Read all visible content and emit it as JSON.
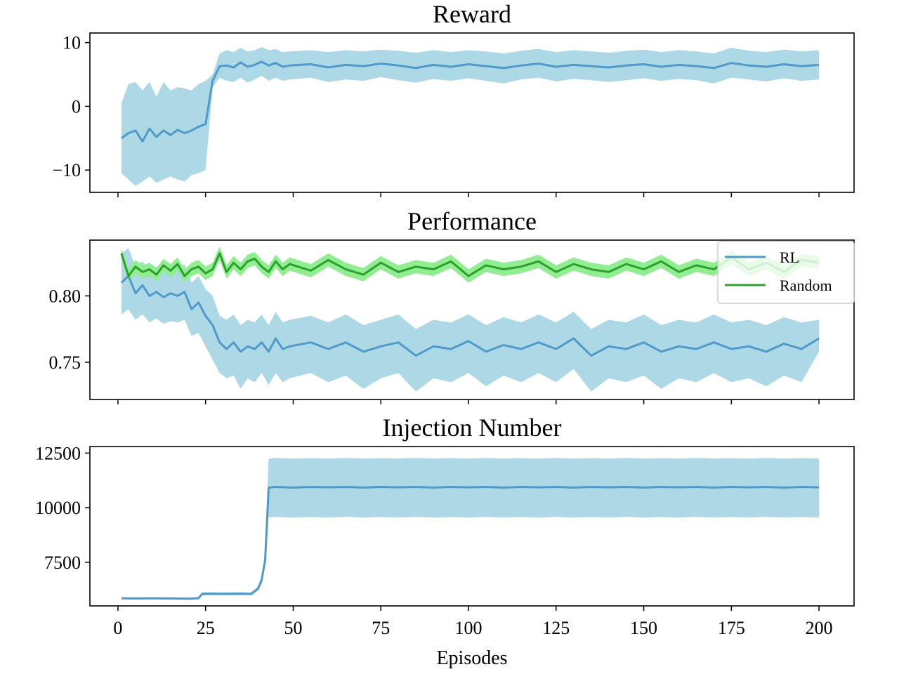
{
  "figure": {
    "xlabel": "Episodes",
    "colors": {
      "rl_line": "#4f9acb",
      "rl_band": "#add8e6",
      "random_line": "#2ca02c",
      "random_band": "#90ee90"
    }
  },
  "chart_data": [
    {
      "type": "line",
      "title": "Reward",
      "xlabel": "",
      "ylabel": "",
      "xlim": [
        -8,
        210
      ],
      "ylim": [
        -13.5,
        11.5
      ],
      "xticks": [
        0,
        25,
        50,
        75,
        100,
        125,
        150,
        175,
        200
      ],
      "yticks": [
        -10,
        0,
        10
      ],
      "ytick_labels": [
        "−10",
        "0",
        "10"
      ],
      "show_xtick_labels": false,
      "legend": null,
      "series": [
        {
          "label": "RL",
          "color": "#4f9acb",
          "band_color": "#add8e6",
          "x": [
            1,
            3,
            5,
            7,
            9,
            11,
            13,
            15,
            17,
            19,
            21,
            23,
            25,
            27,
            29,
            31,
            33,
            35,
            37,
            39,
            41,
            43,
            45,
            47,
            49,
            55,
            60,
            65,
            70,
            75,
            80,
            85,
            90,
            95,
            100,
            105,
            110,
            115,
            120,
            125,
            130,
            135,
            140,
            145,
            150,
            155,
            160,
            165,
            170,
            175,
            180,
            185,
            190,
            195,
            200
          ],
          "y": [
            -5,
            -4.2,
            -3.8,
            -5.5,
            -3.5,
            -4.8,
            -3.8,
            -4.5,
            -3.7,
            -4.2,
            -3.8,
            -3.2,
            -2.8,
            4,
            6.3,
            6.4,
            6.1,
            6.9,
            6.2,
            6.5,
            7,
            6.4,
            6.8,
            6.2,
            6.4,
            6.6,
            6.1,
            6.5,
            6.3,
            6.7,
            6.4,
            6,
            6.5,
            6.2,
            6.6,
            6.3,
            6,
            6.4,
            6.7,
            6.2,
            6.5,
            6.3,
            6.1,
            6.4,
            6.6,
            6.2,
            6.5,
            6.3,
            6,
            6.8,
            6.4,
            6.2,
            6.6,
            6.3,
            6.5
          ],
          "lower": [
            -10.5,
            -11.5,
            -12.5,
            -11.8,
            -11,
            -12,
            -11.5,
            -11,
            -11.5,
            -11.8,
            -10.8,
            -10.5,
            -10,
            3,
            4.5,
            4,
            3.8,
            4.5,
            3.7,
            4.2,
            4.8,
            4,
            4.5,
            4,
            4.2,
            4.5,
            3.8,
            4.2,
            4,
            4.6,
            4.1,
            3.7,
            4.3,
            4,
            4.4,
            4,
            3.6,
            4.2,
            4.5,
            3.9,
            4.3,
            4.1,
            3.8,
            4.1,
            4.4,
            4,
            4.3,
            4.1,
            3.6,
            4.5,
            4.2,
            3.9,
            4.4,
            4,
            4.2
          ],
          "upper": [
            0.5,
            3.5,
            3.8,
            2.5,
            3.8,
            1.5,
            3.8,
            2.5,
            3,
            2.8,
            2.5,
            3.5,
            4,
            5,
            8.3,
            8.8,
            8.5,
            9.2,
            8.6,
            8.8,
            9.3,
            8.8,
            9,
            8.5,
            8.6,
            8.8,
            8.5,
            8.8,
            8.6,
            8.9,
            8.7,
            8.4,
            8.8,
            8.5,
            8.8,
            8.6,
            8.3,
            8.7,
            9,
            8.5,
            8.8,
            8.6,
            8.4,
            8.7,
            8.9,
            8.5,
            8.8,
            8.6,
            8.3,
            9.2,
            8.7,
            8.5,
            8.9,
            8.6,
            8.8
          ]
        }
      ]
    },
    {
      "type": "line",
      "title": "Performance",
      "xlabel": "",
      "ylabel": "",
      "xlim": [
        -8,
        210
      ],
      "ylim": [
        0.722,
        0.842
      ],
      "xticks": [
        0,
        25,
        50,
        75,
        100,
        125,
        150,
        175,
        200
      ],
      "yticks": [
        0.75,
        0.8
      ],
      "ytick_labels": [
        "0.75",
        "0.80"
      ],
      "show_xtick_labels": false,
      "legend": "top-right",
      "series": [
        {
          "label": "RL",
          "color": "#4f9acb",
          "band_color": "#add8e6",
          "x": [
            1,
            3,
            5,
            7,
            9,
            11,
            13,
            15,
            17,
            19,
            21,
            23,
            25,
            27,
            29,
            31,
            33,
            35,
            37,
            39,
            41,
            43,
            45,
            47,
            49,
            55,
            60,
            65,
            70,
            75,
            80,
            85,
            90,
            95,
            100,
            105,
            110,
            115,
            120,
            125,
            130,
            135,
            140,
            145,
            150,
            155,
            160,
            165,
            170,
            175,
            180,
            185,
            190,
            195,
            200
          ],
          "y": [
            0.81,
            0.815,
            0.802,
            0.808,
            0.8,
            0.803,
            0.799,
            0.802,
            0.8,
            0.803,
            0.79,
            0.795,
            0.785,
            0.778,
            0.765,
            0.76,
            0.765,
            0.758,
            0.762,
            0.76,
            0.765,
            0.758,
            0.768,
            0.76,
            0.762,
            0.765,
            0.76,
            0.765,
            0.758,
            0.762,
            0.765,
            0.755,
            0.762,
            0.76,
            0.766,
            0.758,
            0.763,
            0.76,
            0.765,
            0.76,
            0.768,
            0.755,
            0.762,
            0.76,
            0.765,
            0.758,
            0.762,
            0.76,
            0.765,
            0.76,
            0.762,
            0.758,
            0.764,
            0.76,
            0.768
          ],
          "lower": [
            0.786,
            0.79,
            0.782,
            0.786,
            0.78,
            0.783,
            0.779,
            0.781,
            0.78,
            0.782,
            0.77,
            0.772,
            0.762,
            0.752,
            0.742,
            0.738,
            0.74,
            0.73,
            0.738,
            0.735,
            0.742,
            0.733,
            0.742,
            0.735,
            0.738,
            0.742,
            0.735,
            0.74,
            0.73,
            0.738,
            0.742,
            0.728,
            0.738,
            0.735,
            0.742,
            0.732,
            0.74,
            0.735,
            0.742,
            0.735,
            0.745,
            0.728,
            0.738,
            0.735,
            0.74,
            0.73,
            0.738,
            0.735,
            0.742,
            0.735,
            0.738,
            0.732,
            0.74,
            0.735,
            0.758
          ],
          "upper": [
            0.832,
            0.836,
            0.822,
            0.826,
            0.82,
            0.822,
            0.818,
            0.822,
            0.82,
            0.824,
            0.81,
            0.815,
            0.805,
            0.8,
            0.785,
            0.782,
            0.786,
            0.778,
            0.782,
            0.78,
            0.786,
            0.778,
            0.788,
            0.78,
            0.782,
            0.785,
            0.78,
            0.786,
            0.778,
            0.782,
            0.786,
            0.775,
            0.782,
            0.78,
            0.786,
            0.778,
            0.784,
            0.78,
            0.786,
            0.78,
            0.788,
            0.775,
            0.782,
            0.78,
            0.786,
            0.778,
            0.782,
            0.78,
            0.786,
            0.78,
            0.782,
            0.778,
            0.784,
            0.78,
            0.782
          ]
        },
        {
          "label": "Random",
          "color": "#2ca02c",
          "band_color": "#90ee90",
          "x": [
            1,
            3,
            5,
            7,
            9,
            11,
            13,
            15,
            17,
            19,
            21,
            23,
            25,
            27,
            29,
            31,
            33,
            35,
            37,
            39,
            41,
            43,
            45,
            47,
            49,
            55,
            60,
            65,
            70,
            75,
            80,
            85,
            90,
            95,
            100,
            105,
            110,
            115,
            120,
            125,
            130,
            135,
            140,
            145,
            150,
            155,
            160,
            165,
            170,
            175,
            180,
            185,
            190,
            195,
            200
          ],
          "y": [
            0.832,
            0.815,
            0.822,
            0.818,
            0.82,
            0.816,
            0.823,
            0.819,
            0.824,
            0.815,
            0.82,
            0.822,
            0.817,
            0.82,
            0.832,
            0.818,
            0.825,
            0.82,
            0.826,
            0.828,
            0.822,
            0.818,
            0.826,
            0.82,
            0.824,
            0.819,
            0.827,
            0.82,
            0.816,
            0.825,
            0.818,
            0.822,
            0.82,
            0.826,
            0.815,
            0.823,
            0.82,
            0.822,
            0.826,
            0.818,
            0.824,
            0.82,
            0.818,
            0.824,
            0.82,
            0.826,
            0.818,
            0.823,
            0.82,
            0.829,
            0.82,
            0.825,
            0.818,
            0.827,
            0.825
          ],
          "lower": [
            0.828,
            0.81,
            0.817,
            0.813,
            0.815,
            0.811,
            0.818,
            0.814,
            0.819,
            0.81,
            0.815,
            0.817,
            0.812,
            0.815,
            0.827,
            0.813,
            0.82,
            0.815,
            0.821,
            0.823,
            0.817,
            0.813,
            0.821,
            0.815,
            0.819,
            0.814,
            0.822,
            0.815,
            0.811,
            0.82,
            0.813,
            0.817,
            0.815,
            0.821,
            0.81,
            0.818,
            0.815,
            0.817,
            0.821,
            0.813,
            0.819,
            0.815,
            0.813,
            0.819,
            0.815,
            0.821,
            0.813,
            0.818,
            0.815,
            0.824,
            0.815,
            0.82,
            0.813,
            0.822,
            0.82
          ],
          "upper": [
            0.836,
            0.82,
            0.827,
            0.823,
            0.825,
            0.821,
            0.828,
            0.824,
            0.829,
            0.82,
            0.825,
            0.827,
            0.822,
            0.825,
            0.837,
            0.823,
            0.83,
            0.825,
            0.831,
            0.833,
            0.827,
            0.823,
            0.831,
            0.825,
            0.829,
            0.824,
            0.832,
            0.825,
            0.821,
            0.83,
            0.823,
            0.827,
            0.825,
            0.831,
            0.82,
            0.828,
            0.825,
            0.827,
            0.831,
            0.823,
            0.829,
            0.825,
            0.823,
            0.829,
            0.825,
            0.831,
            0.823,
            0.828,
            0.825,
            0.834,
            0.825,
            0.83,
            0.823,
            0.832,
            0.83
          ]
        }
      ]
    },
    {
      "type": "line",
      "title": "Injection Number",
      "xlabel": "Episodes",
      "ylabel": "",
      "xlim": [
        -8,
        210
      ],
      "ylim": [
        5500,
        12800
      ],
      "xticks": [
        0,
        25,
        50,
        75,
        100,
        125,
        150,
        175,
        200
      ],
      "xtick_labels": [
        "0",
        "25",
        "50",
        "75",
        "100",
        "125",
        "150",
        "175",
        "200"
      ],
      "yticks": [
        7500,
        10000,
        12500
      ],
      "ytick_labels": [
        "7500",
        "10000",
        "12500"
      ],
      "show_xtick_labels": true,
      "legend": null,
      "series": [
        {
          "label": "RL",
          "color": "#4f9acb",
          "band_color": "#add8e6",
          "x": [
            1,
            5,
            10,
            15,
            20,
            23,
            24,
            26,
            30,
            35,
            38,
            40,
            41,
            42,
            43,
            45,
            50,
            55,
            60,
            65,
            70,
            75,
            80,
            85,
            90,
            95,
            100,
            105,
            110,
            115,
            120,
            125,
            130,
            135,
            140,
            145,
            150,
            155,
            160,
            165,
            170,
            175,
            180,
            185,
            190,
            195,
            200
          ],
          "y": [
            5850,
            5840,
            5850,
            5840,
            5830,
            5850,
            6050,
            6060,
            6050,
            6060,
            6050,
            6300,
            6700,
            7600,
            10920,
            10950,
            10920,
            10950,
            10930,
            10950,
            10920,
            10950,
            10930,
            10950,
            10920,
            10950,
            10930,
            10950,
            10920,
            10950,
            10930,
            10950,
            10920,
            10950,
            10930,
            10950,
            10920,
            10950,
            10930,
            10950,
            10920,
            10950,
            10930,
            10950,
            10920,
            10950,
            10930
          ],
          "lower": [
            5800,
            5790,
            5800,
            5790,
            5780,
            5800,
            5980,
            5990,
            5980,
            5990,
            5980,
            6200,
            6500,
            7300,
            9550,
            9580,
            9550,
            9570,
            9550,
            9580,
            9550,
            9570,
            9550,
            9580,
            9550,
            9570,
            9550,
            9580,
            9550,
            9570,
            9550,
            9580,
            9550,
            9570,
            9550,
            9580,
            9550,
            9570,
            9550,
            9580,
            9550,
            9570,
            9550,
            9580,
            9550,
            9570,
            9550
          ],
          "upper": [
            5900,
            5890,
            5900,
            5890,
            5880,
            5900,
            6120,
            6130,
            6120,
            6130,
            6120,
            6400,
            6900,
            7900,
            12250,
            12280,
            12250,
            12270,
            12250,
            12280,
            12250,
            12270,
            12250,
            12280,
            12250,
            12270,
            12250,
            12280,
            12250,
            12270,
            12250,
            12280,
            12250,
            12270,
            12250,
            12280,
            12250,
            12270,
            12250,
            12280,
            12250,
            12270,
            12250,
            12280,
            12250,
            12270,
            12250
          ]
        }
      ]
    }
  ]
}
